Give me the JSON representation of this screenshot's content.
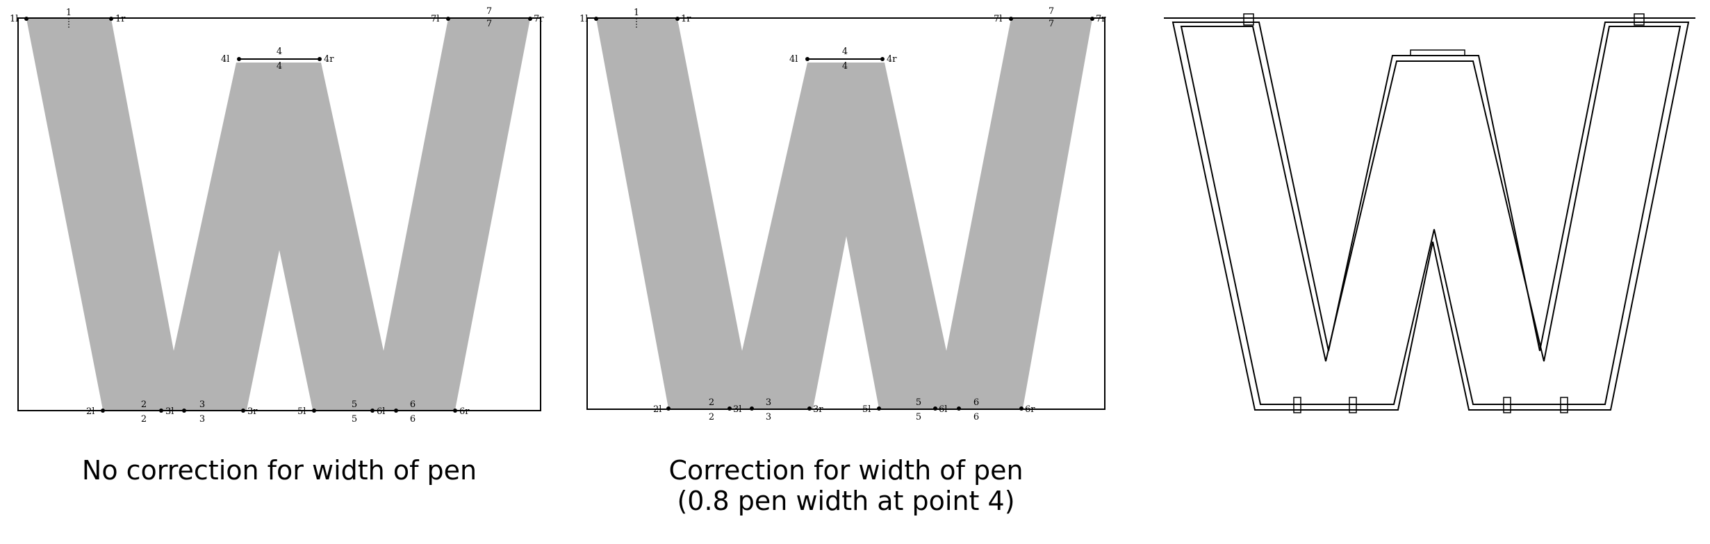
{
  "panels": [
    {
      "caption_line1": "No correction for width of pen",
      "caption_line2": ""
    },
    {
      "caption_line1": "Correction for width of pen",
      "caption_line2": "(0.8 pen width at point 4)"
    },
    {
      "caption_line1": "",
      "caption_line2": ""
    }
  ],
  "point_labels": {
    "p1l": "1l",
    "p1r": "1r",
    "p1": "1",
    "p2l": "2l",
    "p2": "2",
    "p3l": "3l",
    "p3r": "3r",
    "p3": "3",
    "p4l": "4l",
    "p4r": "4r",
    "p4": "4",
    "p5l": "5l",
    "p5": "5",
    "p6l": "6l",
    "p6r": "6r",
    "p6": "6",
    "p7l": "7l",
    "p7r": "7r",
    "p7": "7"
  },
  "colors": {
    "fill": "#b3b3b3",
    "stroke": "#000000"
  }
}
